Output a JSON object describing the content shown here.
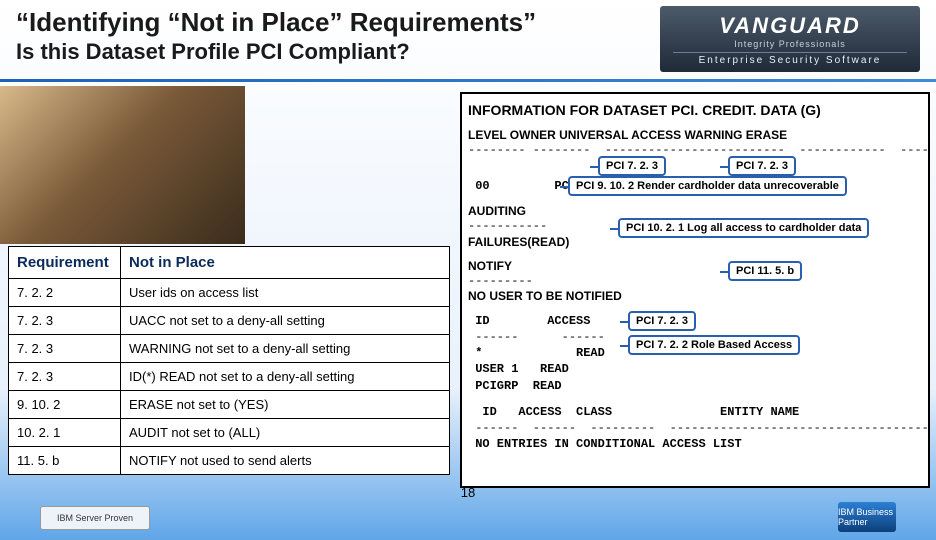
{
  "header": {
    "title_line1": "“Identifying “Not in Place” Requirements”",
    "title_line2": "Is this Dataset Profile PCI Compliant?"
  },
  "logo": {
    "main": "VANGUARD",
    "sub1": "Integrity Professionals",
    "sub2": "Enterprise Security Software"
  },
  "req_table": {
    "headers": [
      "Requirement",
      "Not in Place"
    ],
    "rows": [
      [
        "7. 2. 2",
        "User ids on access list"
      ],
      [
        "7. 2. 3",
        "UACC not set to a deny-all setting"
      ],
      [
        "7. 2. 3",
        "WARNING not set to a deny-all setting"
      ],
      [
        "7. 2. 3",
        "ID(*) READ not set to a deny-all setting"
      ],
      [
        "9. 10. 2",
        "ERASE not set to (YES)"
      ],
      [
        "10. 2. 1",
        "AUDIT not set to (ALL)"
      ],
      [
        "11. 5. b",
        "NOTIFY not used to send alerts"
      ]
    ]
  },
  "info_panel": {
    "title": "INFORMATION FOR DATASET PCI. CREDIT. DATA (G)",
    "cols_line": "LEVEL  OWNER   UNIVERSAL ACCESS  WARNING  ERASE",
    "dash_line": "-------- --------  -------------------------  ------------  --------",
    "row00": " 00         PC",
    "callout_723a": "PCI 7. 2. 3",
    "callout_723b": "PCI 7. 2. 3",
    "callout_9102": "PCI 9. 10. 2 Render cardholder data unrecoverable",
    "auditing_label": "AUDITING",
    "auditing_dash": "-----------",
    "auditing_val": "FAILURES(READ)",
    "callout_1021": "PCI 10. 2. 1 Log all access to cardholder data",
    "notify_label": "NOTIFY",
    "notify_dash": "---------",
    "notify_val": "NO USER TO BE NOTIFIED",
    "callout_115b": "PCI 11. 5. b",
    "access_header": " ID        ACCESS",
    "access_dash": " ------      ------",
    "access_rows": [
      " *             READ",
      " USER 1   READ",
      " PCIGRP  READ"
    ],
    "callout_723c": "PCI 7. 2. 3",
    "callout_722": "PCI 7. 2. 2  Role Based Access",
    "cond_header": "  ID   ACCESS  CLASS               ENTITY NAME",
    "cond_dash": " ------  ------  ---------  ---------------------------------------",
    "cond_text": " NO ENTRIES IN CONDITIONAL ACCESS LIST"
  },
  "footer": {
    "page": "18",
    "server_proven": "IBM Server Proven",
    "ibm_partner": "IBM Business Partner"
  },
  "colors": {
    "header_rule": "#1e62b4",
    "callout_border": "#2a5fb0",
    "panel_border": "#000000"
  }
}
